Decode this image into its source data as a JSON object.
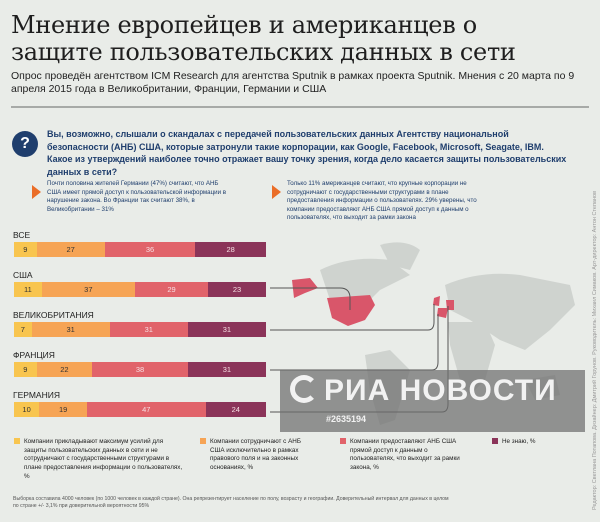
{
  "header": {
    "title": "Мнение европейцев и американцев о защите пользовательских данных в сети",
    "subtitle": "Опрос проведён агентством ICM Research для агентства Sputnik в рамках проекта Sputnik. Мнения с 20 марта по 9 апреля 2015 года в Великобритании, Франции, Германии и США"
  },
  "question": {
    "icon": "question-mark-icon",
    "icon_glyph": "?",
    "text": "Вы, возможно, слышали о скандалах с передачей пользовательских данных Агентству национальной безопасности (АНБ) США, которые затронули такие корпорации, как Google, Facebook, Microsoft, Seagate, IBM. Какое из утверждений наиболее точно отражает вашу точку зрения, когда дело касается защиты пользовательских данных в сети?"
  },
  "notes": [
    "Почти половина жителей Германии (47%) считают, что АНБ США имеет прямой доступ к пользовательской информации в нарушение закона. Во Франции так считают 38%, в Великобритании – 31%",
    "Только 11% американцев считают, что крупные корпорации не сотрудничают с государственными структурами в плане предоставления информации о пользователях. 29% уверены, что компании предоставляют АНБ США прямой доступ к данным о пользователях, что выходит за рамки закона"
  ],
  "chart_data": {
    "type": "bar",
    "orientation": "horizontal-stacked-100",
    "categories": [
      "ВСЕ",
      "США",
      "ВЕЛИКОБРИТАНИЯ",
      "ФРАНЦИЯ",
      "ГЕРМАНИЯ"
    ],
    "series": [
      {
        "name": "Компании прикладывают максимум усилий для защиты пользовательских данных в сети и не сотрудничают с государственными структурами в плане предоставления информации о пользователях, %",
        "color": "#f8c54f",
        "values": [
          9,
          11,
          7,
          9,
          10
        ]
      },
      {
        "name": "Компании сотрудничают с АНБ США исключительно в рамках правового поля и на законных основаниях, %",
        "color": "#f6a455",
        "values": [
          27,
          37,
          31,
          22,
          19
        ]
      },
      {
        "name": "Компании предоставляют АНБ США прямой доступ к данным о пользователях, что выходит за рамки закона, %",
        "color": "#e1636a",
        "values": [
          36,
          29,
          31,
          38,
          47
        ]
      },
      {
        "name": "Не знаю, %",
        "color": "#8b3459",
        "values": [
          28,
          23,
          31,
          31,
          24
        ]
      }
    ],
    "xlim": [
      0,
      100
    ],
    "legend": "bottom"
  },
  "watermark": {
    "logo": "РИА НОВОСТИ",
    "id": "#2635194"
  },
  "footnote": "Выборка составила 4000 человек (по 1000 человек в каждой стране). Она репрезентирует население по полу, возрасту и географии. Доверительный интервал для данных в целом по стране +/- 3,1% при доверительной вероятности 95%",
  "credits": "Редактор: Светлана Потапова. Дизайнер: Дмитрий Горунов. Руководитель: Михаил Симаков. Арт-директор: Антон Степанов",
  "colors": {
    "background": "#e9ece8",
    "accent": "#1f3e6d",
    "arrow": "#ea6d27",
    "map_land": "#cfd3cf",
    "map_highlight": "#d9566a"
  }
}
